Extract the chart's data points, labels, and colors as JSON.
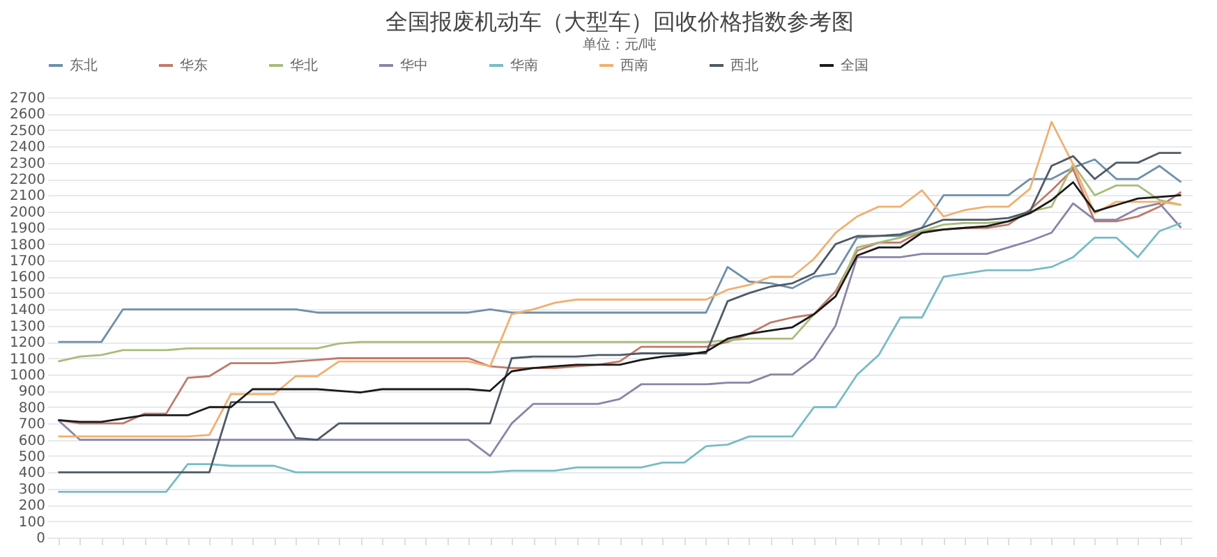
{
  "chart_data": {
    "type": "line",
    "title": "全国报废机动车（大型车）回收价格指数参考图",
    "subtitle": "单位：元/吨",
    "categories": [
      null,
      null,
      null,
      null,
      null,
      null,
      null,
      null,
      null,
      null,
      null,
      null,
      null,
      null,
      null,
      null,
      null,
      null,
      null,
      null,
      null,
      null,
      null,
      null,
      null,
      null,
      null,
      null,
      null,
      null,
      null,
      null,
      null,
      null,
      null,
      null,
      null,
      null,
      null,
      null,
      null,
      null,
      null,
      null,
      null,
      null,
      null,
      null,
      null,
      null,
      null,
      null,
      null
    ],
    "series": [
      {
        "name": "东北",
        "color": "#6f8fa8",
        "values": [
          1200,
          1200,
          1200,
          1400,
          1400,
          1400,
          1400,
          1400,
          1400,
          1400,
          1400,
          1400,
          1380,
          1380,
          1380,
          1380,
          1380,
          1380,
          1380,
          1380,
          1400,
          1380,
          1380,
          1380,
          1380,
          1380,
          1380,
          1380,
          1380,
          1380,
          1380,
          1660,
          1570,
          1560,
          1530,
          1600,
          1620,
          1840,
          1850,
          1850,
          1900,
          2100,
          2100,
          2100,
          2100,
          2200,
          2200,
          2270,
          2320,
          2200,
          2200,
          2280,
          2180
        ]
      },
      {
        "name": "华东",
        "color": "#c07a6a",
        "values": [
          720,
          700,
          700,
          700,
          760,
          760,
          980,
          990,
          1070,
          1070,
          1070,
          1080,
          1090,
          1100,
          1100,
          1100,
          1100,
          1100,
          1100,
          1100,
          1050,
          1040,
          1040,
          1040,
          1050,
          1060,
          1080,
          1170,
          1170,
          1170,
          1170,
          1200,
          1250,
          1320,
          1350,
          1370,
          1510,
          1760,
          1810,
          1810,
          1880,
          1890,
          1900,
          1900,
          1920,
          2010,
          2130,
          2260,
          1940,
          1940,
          1970,
          2030,
          2120
        ]
      },
      {
        "name": "华北",
        "color": "#a8bc78",
        "values": [
          1080,
          1110,
          1120,
          1150,
          1150,
          1150,
          1160,
          1160,
          1160,
          1160,
          1160,
          1160,
          1160,
          1190,
          1200,
          1200,
          1200,
          1200,
          1200,
          1200,
          1200,
          1200,
          1200,
          1200,
          1200,
          1200,
          1200,
          1200,
          1200,
          1200,
          1200,
          1210,
          1220,
          1220,
          1220,
          1370,
          1480,
          1780,
          1810,
          1840,
          1880,
          1920,
          1930,
          1930,
          1940,
          2000,
          2030,
          2290,
          2100,
          2160,
          2160,
          2070,
          2040
        ]
      },
      {
        "name": "华中",
        "color": "#8a84a6",
        "values": [
          720,
          600,
          600,
          600,
          600,
          600,
          600,
          600,
          600,
          600,
          600,
          600,
          600,
          600,
          600,
          600,
          600,
          600,
          600,
          600,
          500,
          700,
          820,
          820,
          820,
          820,
          850,
          940,
          940,
          940,
          940,
          950,
          950,
          1000,
          1000,
          1100,
          1300,
          1720,
          1720,
          1720,
          1740,
          1740,
          1740,
          1740,
          1780,
          1820,
          1870,
          2050,
          1950,
          1950,
          2020,
          2050,
          1900
        ]
      },
      {
        "name": "华南",
        "color": "#78bcc4",
        "values": [
          280,
          280,
          280,
          280,
          280,
          280,
          450,
          450,
          440,
          440,
          440,
          400,
          400,
          400,
          400,
          400,
          400,
          400,
          400,
          400,
          400,
          410,
          410,
          410,
          430,
          430,
          430,
          430,
          460,
          460,
          560,
          570,
          620,
          620,
          620,
          800,
          800,
          1000,
          1120,
          1350,
          1350,
          1600,
          1620,
          1640,
          1640,
          1640,
          1660,
          1720,
          1840,
          1840,
          1720,
          1880,
          1930
        ]
      },
      {
        "name": "西南",
        "color": "#f0b070",
        "values": [
          620,
          620,
          620,
          620,
          620,
          620,
          620,
          630,
          880,
          880,
          880,
          990,
          990,
          1080,
          1080,
          1080,
          1080,
          1080,
          1080,
          1080,
          1050,
          1370,
          1400,
          1440,
          1460,
          1460,
          1460,
          1460,
          1460,
          1460,
          1460,
          1520,
          1550,
          1600,
          1600,
          1710,
          1870,
          1970,
          2030,
          2030,
          2130,
          1970,
          2010,
          2030,
          2030,
          2140,
          2550,
          2290,
          1990,
          2060,
          2060,
          2060,
          2040
        ]
      },
      {
        "name": "西北",
        "color": "#4f5a66",
        "values": [
          400,
          400,
          400,
          400,
          400,
          400,
          400,
          400,
          830,
          830,
          830,
          610,
          600,
          700,
          700,
          700,
          700,
          700,
          700,
          700,
          700,
          1100,
          1110,
          1110,
          1110,
          1120,
          1120,
          1130,
          1130,
          1130,
          1130,
          1450,
          1500,
          1540,
          1560,
          1620,
          1800,
          1850,
          1850,
          1860,
          1900,
          1950,
          1950,
          1950,
          1960,
          2000,
          2280,
          2340,
          2200,
          2300,
          2300,
          2360,
          2360
        ]
      },
      {
        "name": "全国",
        "color": "#1a1a1a",
        "values": [
          720,
          710,
          710,
          730,
          750,
          750,
          750,
          800,
          800,
          910,
          910,
          910,
          910,
          900,
          890,
          910,
          910,
          910,
          910,
          910,
          900,
          1020,
          1040,
          1050,
          1060,
          1060,
          1060,
          1090,
          1110,
          1120,
          1140,
          1220,
          1250,
          1270,
          1290,
          1370,
          1480,
          1730,
          1780,
          1780,
          1870,
          1890,
          1900,
          1910,
          1940,
          1990,
          2070,
          2180,
          2000,
          2040,
          2080,
          2090,
          2100
        ]
      }
    ],
    "ylim": [
      0,
      2700
    ],
    "yticks": [
      0,
      100,
      200,
      300,
      400,
      500,
      600,
      700,
      800,
      900,
      1000,
      1100,
      1200,
      1300,
      1400,
      1500,
      1600,
      1700,
      1800,
      1900,
      2000,
      2100,
      2200,
      2300,
      2400,
      2500,
      2600,
      2700
    ],
    "grid": "y",
    "legend": "top"
  }
}
